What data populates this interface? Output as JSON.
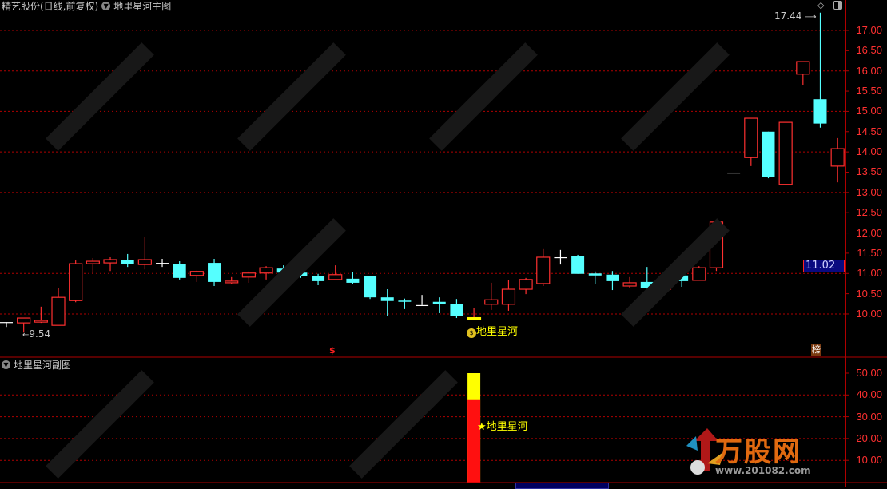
{
  "header": {
    "stock_title": "精艺股份(日线,前复权)",
    "main_indicator": "地里星河主图",
    "sub_indicator": "地里星河副图"
  },
  "colors": {
    "up": "#ff3030",
    "down": "#55ffff",
    "flat": "#ffffff",
    "grid": "#b00000",
    "axis_text": "#ff3030",
    "signal": "#ffff00"
  },
  "price_axis": {
    "ticks": [
      "17.00",
      "16.50",
      "16.00",
      "15.50",
      "15.00",
      "14.50",
      "14.00",
      "13.50",
      "13.00",
      "12.50",
      "12.00",
      "11.50",
      "11.00",
      "10.50",
      "10.00"
    ],
    "range": [
      9.0,
      17.85
    ]
  },
  "current_price": "11.02",
  "annotations": {
    "high_label": "17.44",
    "low_label": "9.54",
    "signal_label": "地里星河",
    "sub_signal_label": "★地里星河",
    "dollar_marker": "$",
    "rank_badge": "榜"
  },
  "sub_axis": {
    "ticks": [
      "50.00",
      "40.00",
      "30.00",
      "20.00",
      "10.00"
    ],
    "range": [
      0,
      50
    ]
  },
  "chart_data": {
    "type": "candlestick",
    "candles": [
      [
        9.8,
        9.8,
        9.8,
        9.68
      ],
      [
        9.78,
        9.9,
        9.9,
        9.54
      ],
      [
        9.8,
        9.84,
        10.18,
        9.78
      ],
      [
        9.72,
        10.41,
        10.65,
        9.72
      ],
      [
        10.33,
        11.24,
        11.32,
        10.29
      ],
      [
        11.24,
        11.3,
        11.38,
        11.0
      ],
      [
        11.26,
        11.34,
        11.4,
        11.06
      ],
      [
        11.34,
        11.24,
        11.48,
        11.16
      ],
      [
        11.22,
        11.34,
        11.91,
        11.1
      ],
      [
        11.26,
        11.26,
        11.36,
        11.16
      ],
      [
        11.24,
        10.89,
        11.3,
        10.85
      ],
      [
        10.95,
        11.05,
        11.07,
        10.79
      ],
      [
        11.26,
        10.79,
        11.36,
        10.69
      ],
      [
        10.77,
        10.81,
        10.91,
        10.73
      ],
      [
        10.91,
        11.01,
        11.05,
        10.77
      ],
      [
        11.01,
        11.14,
        11.18,
        10.85
      ],
      [
        11.12,
        11.02,
        11.2,
        10.97
      ],
      [
        11.02,
        10.93,
        11.22,
        10.89
      ],
      [
        10.93,
        10.81,
        10.99,
        10.71
      ],
      [
        10.85,
        10.97,
        11.2,
        10.85
      ],
      [
        10.87,
        10.77,
        11.03,
        10.73
      ],
      [
        10.93,
        10.41,
        10.93,
        10.37
      ],
      [
        10.41,
        10.32,
        10.61,
        9.94
      ],
      [
        10.33,
        10.3,
        10.38,
        10.12
      ],
      [
        10.22,
        10.22,
        10.47,
        10.22
      ],
      [
        10.3,
        10.24,
        10.41,
        10.02
      ],
      [
        10.24,
        9.96,
        10.37,
        9.9
      ],
      [
        9.9,
        9.91,
        10.14,
        9.9
      ],
      [
        10.24,
        10.35,
        10.77,
        10.1
      ],
      [
        10.24,
        10.61,
        10.83,
        10.08
      ],
      [
        10.61,
        10.85,
        10.89,
        10.49
      ],
      [
        10.75,
        11.4,
        11.6,
        10.69
      ],
      [
        11.4,
        11.4,
        11.58,
        11.22
      ],
      [
        11.42,
        10.99,
        11.46,
        10.99
      ],
      [
        11.0,
        10.95,
        11.05,
        10.73
      ],
      [
        10.97,
        10.81,
        11.06,
        10.59
      ],
      [
        10.69,
        10.77,
        10.91,
        10.65
      ],
      [
        10.79,
        10.65,
        11.16,
        10.51
      ],
      [
        10.61,
        10.85,
        11.0,
        10.55
      ],
      [
        10.95,
        10.81,
        11.08,
        10.67
      ],
      [
        10.83,
        11.14,
        11.18,
        10.83
      ],
      [
        11.14,
        12.27,
        12.27,
        11.06
      ],
      [
        13.49,
        13.49,
        13.49,
        13.49
      ],
      [
        13.86,
        14.83,
        14.83,
        13.65
      ],
      [
        14.5,
        13.39,
        14.5,
        13.35
      ],
      [
        13.2,
        14.73,
        14.73,
        13.18
      ],
      [
        15.92,
        16.23,
        16.23,
        15.64
      ],
      [
        15.3,
        14.7,
        17.44,
        14.6
      ],
      [
        13.65,
        14.08,
        14.34,
        13.25
      ]
    ],
    "candle_fields": [
      "open",
      "close",
      "high",
      "low"
    ],
    "signal_candle_index": 27,
    "sub_bar": {
      "candle_index": 27,
      "value": 50,
      "red_part": 38
    }
  },
  "logo": {
    "name": "万股网",
    "url": "www.201082.com"
  }
}
